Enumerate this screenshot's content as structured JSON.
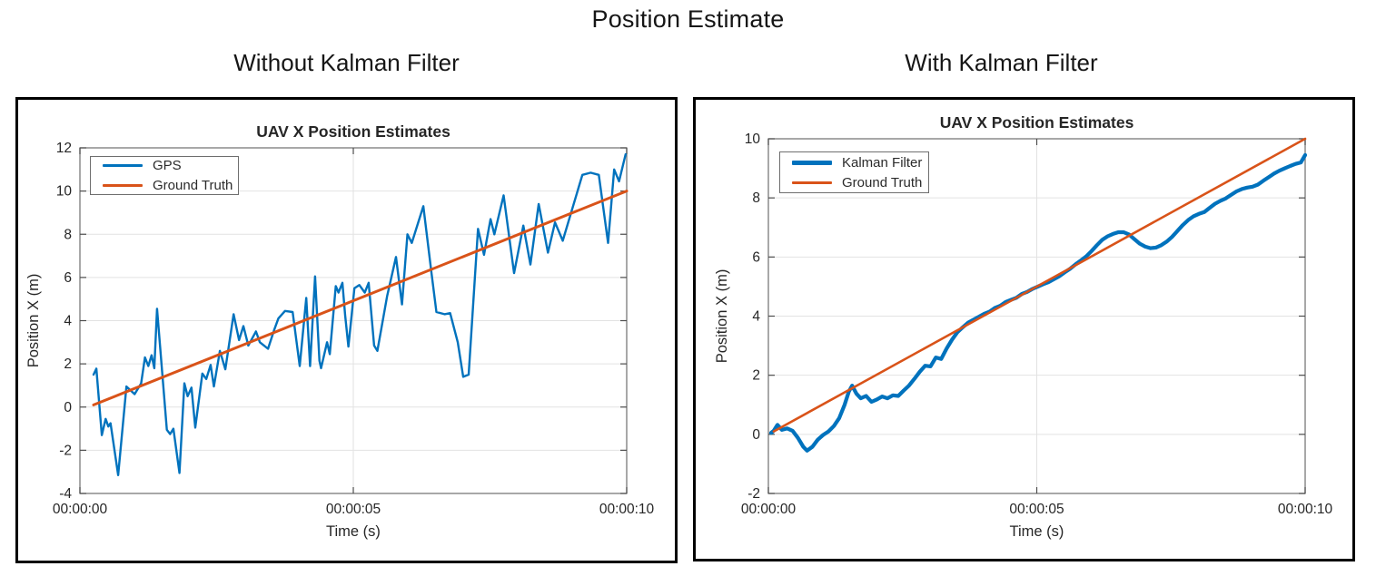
{
  "figure": {
    "title": "Position Estimate",
    "left_subtitle": "Without Kalman Filter",
    "right_subtitle": "With Kalman Filter"
  },
  "colors": {
    "series_blue": "#0072BD",
    "series_orange": "#D95319",
    "panel_border": "#000000"
  },
  "chart_data": [
    {
      "type": "line",
      "title": "UAV X Position Estimates",
      "xlabel": "Time (s)",
      "ylabel": "Position X (m)",
      "xlim": [
        0,
        10
      ],
      "ylim": [
        -4,
        12
      ],
      "yticks": [
        -4,
        -2,
        0,
        2,
        4,
        6,
        8,
        10,
        12
      ],
      "xticks": [
        {
          "t": 0,
          "label": "00:00:00"
        },
        {
          "t": 5,
          "label": "00:00:05"
        },
        {
          "t": 10,
          "label": "00:00:10"
        }
      ],
      "grid": true,
      "legend_position": "top-left",
      "series": [
        {
          "name": "GPS",
          "color": "#0072BD",
          "width": 2.4,
          "points": [
            [
              0.25,
              1.5
            ],
            [
              0.3,
              1.78
            ],
            [
              0.4,
              -1.3
            ],
            [
              0.47,
              -0.55
            ],
            [
              0.52,
              -0.9
            ],
            [
              0.56,
              -0.75
            ],
            [
              0.7,
              -3.15
            ],
            [
              0.85,
              0.95
            ],
            [
              1.0,
              0.6
            ],
            [
              1.12,
              1.1
            ],
            [
              1.19,
              2.3
            ],
            [
              1.25,
              1.9
            ],
            [
              1.31,
              2.4
            ],
            [
              1.36,
              1.8
            ],
            [
              1.41,
              4.55
            ],
            [
              1.59,
              -1.05
            ],
            [
              1.65,
              -1.25
            ],
            [
              1.71,
              -1.0
            ],
            [
              1.82,
              -3.05
            ],
            [
              1.91,
              1.1
            ],
            [
              1.97,
              0.5
            ],
            [
              2.04,
              0.9
            ],
            [
              2.11,
              -0.95
            ],
            [
              2.24,
              1.55
            ],
            [
              2.31,
              1.3
            ],
            [
              2.39,
              1.95
            ],
            [
              2.45,
              0.95
            ],
            [
              2.56,
              2.6
            ],
            [
              2.66,
              1.75
            ],
            [
              2.81,
              4.3
            ],
            [
              2.91,
              3.1
            ],
            [
              2.99,
              3.75
            ],
            [
              3.08,
              2.85
            ],
            [
              3.22,
              3.5
            ],
            [
              3.29,
              3.0
            ],
            [
              3.44,
              2.7
            ],
            [
              3.55,
              3.55
            ],
            [
              3.63,
              4.1
            ],
            [
              3.75,
              4.45
            ],
            [
              3.89,
              4.4
            ],
            [
              4.02,
              1.9
            ],
            [
              4.14,
              5.05
            ],
            [
              4.21,
              1.9
            ],
            [
              4.3,
              6.05
            ],
            [
              4.38,
              2.15
            ],
            [
              4.41,
              1.8
            ],
            [
              4.52,
              3.0
            ],
            [
              4.57,
              2.45
            ],
            [
              4.68,
              5.6
            ],
            [
              4.73,
              5.3
            ],
            [
              4.8,
              5.75
            ],
            [
              4.85,
              4.25
            ],
            [
              4.91,
              2.8
            ],
            [
              5.02,
              5.5
            ],
            [
              5.11,
              5.65
            ],
            [
              5.21,
              5.3
            ],
            [
              5.28,
              5.75
            ],
            [
              5.38,
              2.85
            ],
            [
              5.44,
              2.6
            ],
            [
              5.62,
              5.15
            ],
            [
              5.78,
              6.95
            ],
            [
              5.89,
              4.75
            ],
            [
              5.99,
              8.0
            ],
            [
              6.07,
              7.6
            ],
            [
              6.28,
              9.3
            ],
            [
              6.43,
              6.2
            ],
            [
              6.52,
              4.4
            ],
            [
              6.67,
              4.3
            ],
            [
              6.77,
              4.35
            ],
            [
              6.91,
              3.0
            ],
            [
              7.01,
              1.4
            ],
            [
              7.11,
              1.5
            ],
            [
              7.28,
              8.25
            ],
            [
              7.39,
              7.05
            ],
            [
              7.51,
              8.7
            ],
            [
              7.58,
              8.0
            ],
            [
              7.75,
              9.8
            ],
            [
              7.94,
              6.2
            ],
            [
              8.11,
              8.4
            ],
            [
              8.24,
              6.6
            ],
            [
              8.39,
              9.4
            ],
            [
              8.56,
              7.15
            ],
            [
              8.69,
              8.55
            ],
            [
              8.83,
              7.7
            ],
            [
              9.19,
              10.75
            ],
            [
              9.34,
              10.85
            ],
            [
              9.49,
              10.75
            ],
            [
              9.66,
              7.6
            ],
            [
              9.77,
              11.0
            ],
            [
              9.86,
              10.45
            ],
            [
              9.98,
              11.7
            ]
          ]
        },
        {
          "name": "Ground Truth",
          "color": "#D95319",
          "width": 3,
          "points": [
            [
              0.25,
              0.1
            ],
            [
              10,
              10
            ]
          ]
        }
      ]
    },
    {
      "type": "line",
      "title": "UAV X Position Estimates",
      "xlabel": "Time (s)",
      "ylabel": "Position X (m)",
      "xlim": [
        0,
        10
      ],
      "ylim": [
        -2,
        10
      ],
      "yticks": [
        -2,
        0,
        2,
        4,
        6,
        8,
        10
      ],
      "xticks": [
        {
          "t": 0,
          "label": "00:00:00"
        },
        {
          "t": 5,
          "label": "00:00:05"
        },
        {
          "t": 10,
          "label": "00:00:10"
        }
      ],
      "grid": true,
      "legend_position": "top-left",
      "series": [
        {
          "name": "Kalman Filter",
          "color": "#0072BD",
          "width": 4.2,
          "points": [
            [
              0.05,
              0.05
            ],
            [
              0.1,
              0.12
            ],
            [
              0.17,
              0.32
            ],
            [
              0.25,
              0.15
            ],
            [
              0.35,
              0.2
            ],
            [
              0.45,
              0.12
            ],
            [
              0.55,
              -0.12
            ],
            [
              0.65,
              -0.42
            ],
            [
              0.72,
              -0.55
            ],
            [
              0.82,
              -0.42
            ],
            [
              0.92,
              -0.18
            ],
            [
              1.02,
              -0.02
            ],
            [
              1.12,
              0.1
            ],
            [
              1.22,
              0.28
            ],
            [
              1.32,
              0.55
            ],
            [
              1.42,
              1.0
            ],
            [
              1.5,
              1.45
            ],
            [
              1.56,
              1.65
            ],
            [
              1.64,
              1.38
            ],
            [
              1.72,
              1.22
            ],
            [
              1.82,
              1.3
            ],
            [
              1.92,
              1.1
            ],
            [
              2.02,
              1.18
            ],
            [
              2.12,
              1.28
            ],
            [
              2.22,
              1.22
            ],
            [
              2.32,
              1.32
            ],
            [
              2.42,
              1.3
            ],
            [
              2.52,
              1.48
            ],
            [
              2.62,
              1.65
            ],
            [
              2.72,
              1.88
            ],
            [
              2.82,
              2.12
            ],
            [
              2.92,
              2.32
            ],
            [
              3.02,
              2.3
            ],
            [
              3.12,
              2.6
            ],
            [
              3.22,
              2.55
            ],
            [
              3.32,
              2.9
            ],
            [
              3.42,
              3.2
            ],
            [
              3.52,
              3.45
            ],
            [
              3.62,
              3.62
            ],
            [
              3.72,
              3.78
            ],
            [
              3.82,
              3.88
            ],
            [
              3.92,
              3.98
            ],
            [
              4.02,
              4.08
            ],
            [
              4.12,
              4.15
            ],
            [
              4.22,
              4.28
            ],
            [
              4.32,
              4.35
            ],
            [
              4.42,
              4.48
            ],
            [
              4.52,
              4.55
            ],
            [
              4.62,
              4.62
            ],
            [
              4.72,
              4.75
            ],
            [
              4.82,
              4.82
            ],
            [
              4.92,
              4.92
            ],
            [
              5.02,
              5.0
            ],
            [
              5.12,
              5.08
            ],
            [
              5.22,
              5.15
            ],
            [
              5.32,
              5.25
            ],
            [
              5.42,
              5.35
            ],
            [
              5.52,
              5.48
            ],
            [
              5.62,
              5.6
            ],
            [
              5.72,
              5.75
            ],
            [
              5.82,
              5.88
            ],
            [
              5.92,
              6.02
            ],
            [
              6.02,
              6.2
            ],
            [
              6.12,
              6.4
            ],
            [
              6.22,
              6.58
            ],
            [
              6.32,
              6.7
            ],
            [
              6.42,
              6.78
            ],
            [
              6.52,
              6.84
            ],
            [
              6.62,
              6.84
            ],
            [
              6.72,
              6.76
            ],
            [
              6.82,
              6.6
            ],
            [
              6.92,
              6.45
            ],
            [
              7.02,
              6.35
            ],
            [
              7.12,
              6.3
            ],
            [
              7.22,
              6.32
            ],
            [
              7.32,
              6.4
            ],
            [
              7.42,
              6.52
            ],
            [
              7.52,
              6.68
            ],
            [
              7.62,
              6.88
            ],
            [
              7.72,
              7.08
            ],
            [
              7.82,
              7.25
            ],
            [
              7.92,
              7.38
            ],
            [
              8.02,
              7.46
            ],
            [
              8.12,
              7.52
            ],
            [
              8.22,
              7.66
            ],
            [
              8.32,
              7.8
            ],
            [
              8.42,
              7.9
            ],
            [
              8.52,
              7.98
            ],
            [
              8.62,
              8.1
            ],
            [
              8.72,
              8.22
            ],
            [
              8.82,
              8.3
            ],
            [
              8.92,
              8.35
            ],
            [
              9.02,
              8.38
            ],
            [
              9.12,
              8.45
            ],
            [
              9.22,
              8.58
            ],
            [
              9.32,
              8.7
            ],
            [
              9.42,
              8.82
            ],
            [
              9.52,
              8.92
            ],
            [
              9.62,
              9.0
            ],
            [
              9.72,
              9.08
            ],
            [
              9.82,
              9.15
            ],
            [
              9.92,
              9.2
            ],
            [
              10.0,
              9.45
            ]
          ]
        },
        {
          "name": "Ground Truth",
          "color": "#D95319",
          "width": 2.6,
          "points": [
            [
              0.1,
              0.1
            ],
            [
              10,
              10
            ]
          ]
        }
      ]
    }
  ]
}
